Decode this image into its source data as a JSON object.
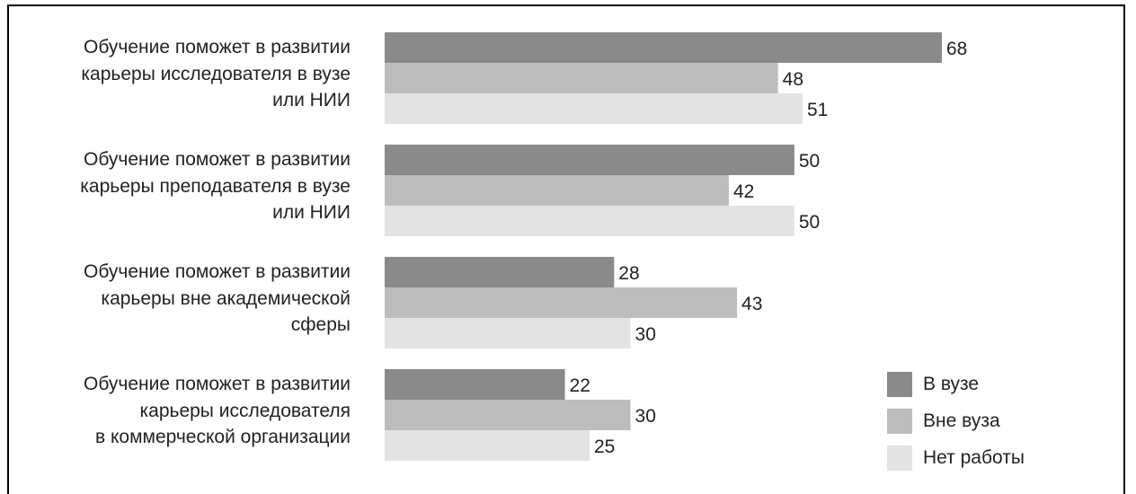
{
  "chart_data": {
    "type": "bar",
    "orientation": "horizontal",
    "categories": [
      "Обучение поможет в развитии\nкарьеры исследователя в вузе\nили НИИ",
      "Обучение поможет в развитии\nкарьеры преподавателя в вузе\nили НИИ",
      "Обучение поможет в развитии\nкарьеры вне академической\nсферы",
      "Обучение поможет в развитии\nкарьеры исследователя\nв коммерческой организации"
    ],
    "series": [
      {
        "name": "В вузе",
        "values": [
          68,
          50,
          28,
          22
        ],
        "color": "#8a8a8a"
      },
      {
        "name": "Вне вуза",
        "values": [
          48,
          42,
          43,
          30
        ],
        "color": "#bdbdbd"
      },
      {
        "name": "Нет работы",
        "values": [
          51,
          50,
          30,
          25
        ],
        "color": "#e3e3e3"
      }
    ],
    "xlim": [
      0,
      68
    ],
    "legend_position": "bottom-right",
    "grid": false
  }
}
